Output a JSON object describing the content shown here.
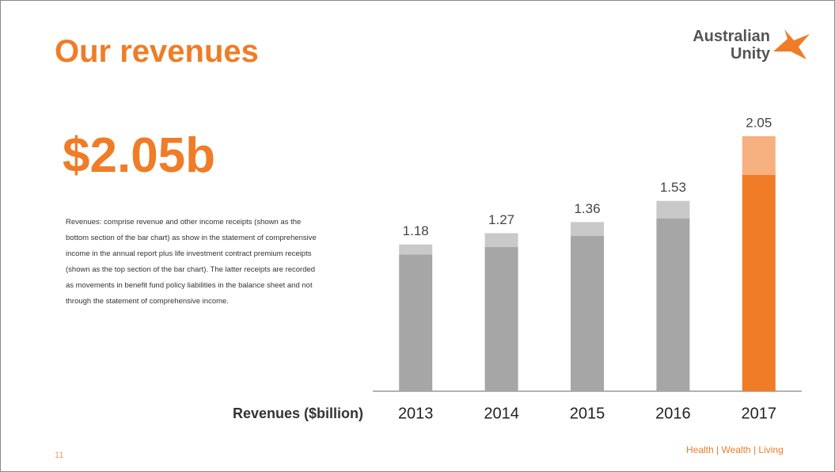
{
  "header": {
    "title": "Our revenues",
    "logo_line1": "Australian",
    "logo_line2": "Unity"
  },
  "headline": "$2.05b",
  "note": "Revenues: comprise revenue and other income receipts (shown as the bottom section of the bar chart) as show in the statement of comprehensive income in the annual report plus life investment contract premium receipts (shown as the top section of the bar chart). The latter receipts are recorded as movements in benefit fund policy liabilities in the balance sheet and not through the statement of comprehensive income.",
  "footer": {
    "page": "11",
    "tagline": "Health | Wealth | Living"
  },
  "chart_data": {
    "type": "stacked_bar",
    "x_label": "Revenues ($billion)",
    "categories": [
      "2013",
      "2014",
      "2015",
      "2016",
      "2017"
    ],
    "series": [
      {
        "values": [
          1.1,
          1.16,
          1.25,
          1.39,
          1.74
        ],
        "colors": [
          "#a6a6a6",
          "#a6a6a6",
          "#a6a6a6",
          "#a6a6a6",
          "#f07c27"
        ]
      },
      {
        "values": [
          0.08,
          0.11,
          0.11,
          0.14,
          0.31
        ],
        "colors": [
          "#c9c9c9",
          "#c9c9c9",
          "#c9c9c9",
          "#c9c9c9",
          "#f7b07f"
        ]
      }
    ],
    "totals": [
      1.18,
      1.27,
      1.36,
      1.53,
      2.05
    ],
    "ylim": [
      0,
      2.05
    ]
  }
}
